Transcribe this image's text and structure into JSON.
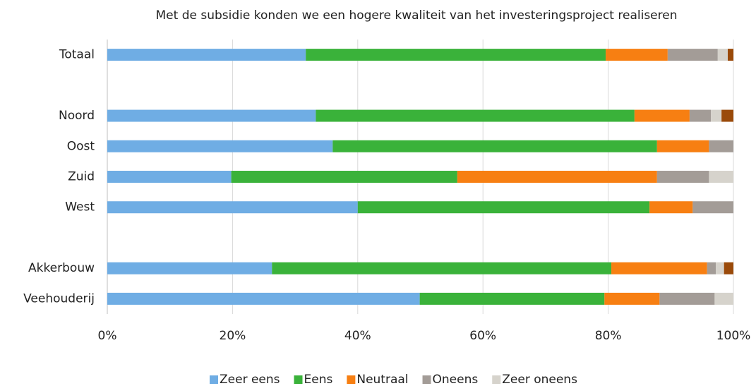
{
  "chart_data": {
    "type": "stacked_barh",
    "title": "Met de subsidie konden we een hogere kwaliteit van het investeringsproject realiseren",
    "categories": [
      "Totaal",
      null,
      "Noord",
      "Oost",
      "Zuid",
      "West",
      null,
      "Akkerbouw",
      "Veehouderij"
    ],
    "series": [
      {
        "name": "Zeer eens",
        "color": "#6fade4",
        "values": [
          31.7,
          null,
          33.3,
          36.0,
          19.8,
          40.0,
          null,
          26.3,
          49.9
        ]
      },
      {
        "name": "Eens",
        "color": "#3ab23a",
        "values": [
          47.9,
          null,
          50.9,
          51.8,
          36.1,
          46.6,
          null,
          54.2,
          29.5
        ]
      },
      {
        "name": "Neutraal",
        "color": "#f77f12",
        "values": [
          9.9,
          null,
          8.8,
          8.3,
          31.9,
          6.9,
          null,
          15.3,
          8.8
        ]
      },
      {
        "name": "Oneens",
        "color": "#a39c97",
        "values": [
          8.0,
          null,
          3.4,
          3.9,
          8.3,
          6.5,
          null,
          1.4,
          8.8
        ]
      },
      {
        "name": "Zeer oneens",
        "color": "#d6d3cc",
        "values": [
          1.6,
          null,
          1.7,
          0,
          3.9,
          0,
          null,
          1.3,
          3.0
        ]
      },
      {
        "color": "#9a4a0a",
        "values": [
          0.9,
          null,
          1.9,
          0,
          0,
          0,
          null,
          1.5,
          0
        ]
      }
    ],
    "xlim": [
      0,
      100
    ],
    "xticks": [
      {
        "value": 0,
        "label": "0%"
      },
      {
        "value": 20,
        "label": "20%"
      },
      {
        "value": 40,
        "label": "40%"
      },
      {
        "value": 60,
        "label": "60%"
      },
      {
        "value": 80,
        "label": "80%"
      },
      {
        "value": 100,
        "label": "100%"
      }
    ],
    "grid": true,
    "legend": "bottom"
  }
}
